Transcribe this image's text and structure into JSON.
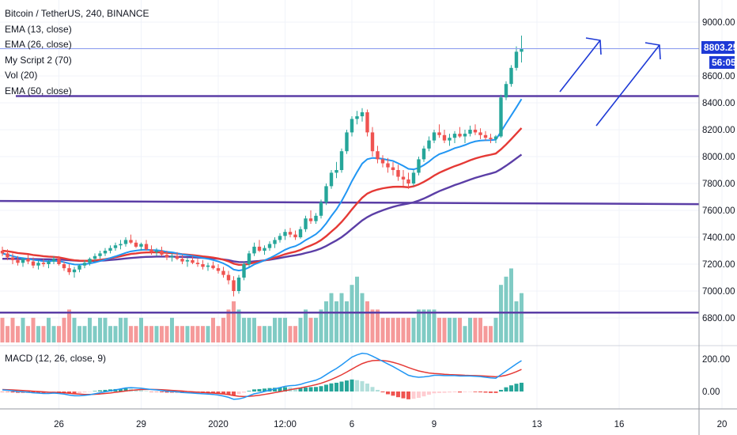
{
  "legend": {
    "title": "Bitcoin / TetherUS, 240, BINANCE",
    "ema13": "EMA (13, close)",
    "ema26": "EMA (26, close)",
    "script": "My Script 2  (70)",
    "vol": "Vol (20)",
    "ema50": "EMA (50, close)"
  },
  "macd_legend": "MACD (12, 26, close, 9)",
  "price_badge": "8803.25",
  "countdown_badge": "56:05",
  "colors": {
    "up": "#26a69a",
    "down": "#ef5350",
    "vol_up": "#80cbc4",
    "vol_down": "#f59a9a",
    "ema13": "#2196f3",
    "ema26": "#e53935",
    "ema50": "#5b3ea6",
    "hline": "#5b3ea6",
    "arrow": "#1e3ad6",
    "price_line": "#8c9cf0",
    "badge_price": "#1e3ad6",
    "badge_timer": "#1e3ad6"
  },
  "chart_data": {
    "type": "candlestick",
    "price_axis": {
      "ticks": [
        "9000.00",
        "8800.00",
        "8600.00",
        "8400.00",
        "8200.00",
        "8000.00",
        "7800.00",
        "7600.00",
        "7400.00",
        "7200.00",
        "7000.00",
        "6800.00"
      ],
      "values": [
        9000,
        8800,
        8600,
        8400,
        8200,
        8000,
        7800,
        7600,
        7400,
        7200,
        7000,
        6800
      ],
      "range": [
        6680,
        9080
      ]
    },
    "macd_axis": {
      "ticks": [
        "200.00",
        "0.00"
      ],
      "values": [
        200,
        0
      ],
      "range": [
        -110,
        260
      ]
    },
    "time_axis": {
      "labels": [
        "26",
        "29",
        "2020",
        "12:00",
        "6",
        "9",
        "13",
        "16",
        "20"
      ],
      "bar_index": [
        11,
        27,
        42,
        55,
        68,
        84,
        104,
        120,
        140
      ]
    },
    "horizontal_lines": [
      8450,
      7670,
      6840
    ],
    "last_price": 8803.25,
    "candles": [
      [
        7300,
        7330,
        7260,
        7280
      ],
      [
        7280,
        7310,
        7230,
        7250
      ],
      [
        7250,
        7280,
        7200,
        7230
      ],
      [
        7230,
        7260,
        7190,
        7210
      ],
      [
        7210,
        7250,
        7180,
        7240
      ],
      [
        7240,
        7270,
        7200,
        7220
      ],
      [
        7220,
        7250,
        7170,
        7190
      ],
      [
        7190,
        7230,
        7160,
        7210
      ],
      [
        7210,
        7240,
        7180,
        7200
      ],
      [
        7200,
        7230,
        7170,
        7220
      ],
      [
        7220,
        7260,
        7200,
        7240
      ],
      [
        7240,
        7260,
        7190,
        7200
      ],
      [
        7200,
        7220,
        7150,
        7170
      ],
      [
        7170,
        7200,
        7120,
        7140
      ],
      [
        7140,
        7180,
        7100,
        7160
      ],
      [
        7160,
        7200,
        7140,
        7190
      ],
      [
        7190,
        7230,
        7170,
        7210
      ],
      [
        7210,
        7250,
        7190,
        7240
      ],
      [
        7240,
        7280,
        7220,
        7260
      ],
      [
        7260,
        7300,
        7240,
        7280
      ],
      [
        7280,
        7320,
        7260,
        7300
      ],
      [
        7300,
        7340,
        7280,
        7320
      ],
      [
        7320,
        7360,
        7300,
        7340
      ],
      [
        7340,
        7380,
        7310,
        7350
      ],
      [
        7350,
        7400,
        7330,
        7380
      ],
      [
        7380,
        7420,
        7350,
        7360
      ],
      [
        7360,
        7380,
        7320,
        7330
      ],
      [
        7330,
        7360,
        7300,
        7350
      ],
      [
        7350,
        7380,
        7300,
        7310
      ],
      [
        7310,
        7340,
        7270,
        7290
      ],
      [
        7290,
        7320,
        7260,
        7300
      ],
      [
        7300,
        7330,
        7260,
        7270
      ],
      [
        7270,
        7300,
        7230,
        7250
      ],
      [
        7250,
        7280,
        7220,
        7260
      ],
      [
        7260,
        7290,
        7230,
        7240
      ],
      [
        7240,
        7270,
        7200,
        7220
      ],
      [
        7220,
        7250,
        7180,
        7230
      ],
      [
        7230,
        7260,
        7200,
        7210
      ],
      [
        7210,
        7240,
        7180,
        7200
      ],
      [
        7200,
        7230,
        7160,
        7180
      ],
      [
        7180,
        7210,
        7150,
        7190
      ],
      [
        7190,
        7220,
        7160,
        7170
      ],
      [
        7170,
        7200,
        7130,
        7150
      ],
      [
        7150,
        7180,
        7100,
        7120
      ],
      [
        7120,
        7150,
        7050,
        7080
      ],
      [
        7080,
        7110,
        6960,
        7000
      ],
      [
        7000,
        7120,
        6980,
        7100
      ],
      [
        7100,
        7220,
        7080,
        7200
      ],
      [
        7200,
        7300,
        7180,
        7280
      ],
      [
        7280,
        7360,
        7260,
        7330
      ],
      [
        7330,
        7380,
        7290,
        7300
      ],
      [
        7300,
        7340,
        7270,
        7320
      ],
      [
        7320,
        7370,
        7300,
        7350
      ],
      [
        7350,
        7400,
        7320,
        7380
      ],
      [
        7380,
        7430,
        7360,
        7410
      ],
      [
        7410,
        7460,
        7380,
        7440
      ],
      [
        7440,
        7470,
        7400,
        7420
      ],
      [
        7420,
        7450,
        7380,
        7400
      ],
      [
        7400,
        7480,
        7390,
        7460
      ],
      [
        7460,
        7560,
        7440,
        7540
      ],
      [
        7540,
        7600,
        7500,
        7520
      ],
      [
        7520,
        7580,
        7500,
        7560
      ],
      [
        7560,
        7680,
        7540,
        7660
      ],
      [
        7660,
        7800,
        7640,
        7780
      ],
      [
        7780,
        7900,
        7760,
        7880
      ],
      [
        7880,
        7960,
        7840,
        7900
      ],
      [
        7900,
        8060,
        7880,
        8040
      ],
      [
        8040,
        8200,
        8020,
        8180
      ],
      [
        8180,
        8300,
        8150,
        8280
      ],
      [
        8280,
        8340,
        8240,
        8300
      ],
      [
        8300,
        8360,
        8260,
        8330
      ],
      [
        8330,
        8350,
        8150,
        8180
      ],
      [
        8180,
        8220,
        8000,
        8040
      ],
      [
        8040,
        8080,
        7950,
        7980
      ],
      [
        7980,
        8010,
        7920,
        7950
      ],
      [
        7950,
        7990,
        7880,
        7920
      ],
      [
        7920,
        7960,
        7860,
        7900
      ],
      [
        7900,
        7940,
        7820,
        7850
      ],
      [
        7850,
        7900,
        7780,
        7830
      ],
      [
        7830,
        7880,
        7760,
        7800
      ],
      [
        7800,
        7900,
        7780,
        7880
      ],
      [
        7880,
        8000,
        7860,
        7980
      ],
      [
        7980,
        8080,
        7960,
        8060
      ],
      [
        8060,
        8150,
        8040,
        8120
      ],
      [
        8120,
        8200,
        8100,
        8180
      ],
      [
        8180,
        8240,
        8140,
        8160
      ],
      [
        8160,
        8200,
        8100,
        8120
      ],
      [
        8120,
        8170,
        8080,
        8140
      ],
      [
        8140,
        8190,
        8100,
        8170
      ],
      [
        8170,
        8220,
        8140,
        8150
      ],
      [
        8150,
        8200,
        8100,
        8170
      ],
      [
        8170,
        8230,
        8150,
        8200
      ],
      [
        8200,
        8240,
        8160,
        8180
      ],
      [
        8180,
        8210,
        8130,
        8160
      ],
      [
        8160,
        8190,
        8120,
        8140
      ],
      [
        8140,
        8170,
        8100,
        8130
      ],
      [
        8130,
        8160,
        8100,
        8150
      ],
      [
        8150,
        8460,
        8140,
        8440
      ],
      [
        8440,
        8560,
        8420,
        8540
      ],
      [
        8540,
        8680,
        8520,
        8660
      ],
      [
        8660,
        8820,
        8640,
        8780
      ],
      [
        8780,
        8900,
        8700,
        8803.25
      ]
    ],
    "volume_upper": 10,
    "volumes": [
      3,
      2,
      3,
      2,
      3,
      2,
      3,
      2,
      2,
      3,
      2,
      2,
      3,
      4,
      3,
      2,
      2,
      3,
      2,
      3,
      3,
      2,
      2,
      3,
      3,
      2,
      2,
      3,
      2,
      2,
      2,
      2,
      2,
      3,
      2,
      2,
      2,
      2,
      2,
      2,
      2,
      3,
      2,
      3,
      4,
      5,
      4,
      3,
      3,
      3,
      2,
      2,
      2,
      3,
      3,
      3,
      2,
      2,
      3,
      4,
      3,
      3,
      4,
      5,
      6,
      5,
      6,
      5,
      7,
      8,
      6,
      5,
      4,
      4,
      3,
      3,
      3,
      3,
      3,
      3,
      3,
      4,
      4,
      4,
      4,
      3,
      3,
      3,
      3,
      3,
      2,
      3,
      3,
      3,
      2,
      2,
      3,
      7,
      8,
      9,
      5,
      6
    ],
    "ema13": [
      7280,
      7270,
      7260,
      7250,
      7245,
      7240,
      7232,
      7228,
      7222,
      7222,
      7225,
      7222,
      7215,
      7205,
      7198,
      7197,
      7200,
      7205,
      7213,
      7223,
      7234,
      7246,
      7258,
      7271,
      7284,
      7295,
      7301,
      7306,
      7307,
      7305,
      7304,
      7299,
      7292,
      7288,
      7281,
      7273,
      7268,
      7261,
      7254,
      7246,
      7240,
      7231,
      7220,
      7206,
      7186,
      7160,
      7152,
      7159,
      7176,
      7198,
      7213,
      7228,
      7245,
      7264,
      7285,
      7307,
      7323,
      7334,
      7353,
      7379,
      7400,
      7423,
      7457,
      7503,
      7558,
      7608,
      7669,
      7740,
      7817,
      7885,
      7948,
      7981,
      7990,
      7988,
      7983,
      7975,
      7968,
      7950,
      7931,
      7909,
      7905,
      7916,
      7937,
      7963,
      7994,
      8018,
      8031,
      8046,
      8063,
      8073,
      8086,
      8102,
      8113,
      8119,
      8121,
      8122,
      8126,
      8185,
      8247,
      8306,
      8366,
      8428
    ],
    "ema26": [
      7300,
      7296,
      7290,
      7283,
      7279,
      7275,
      7268,
      7264,
      7259,
      7256,
      7254,
      7250,
      7243,
      7235,
      7229,
      7226,
      7225,
      7225,
      7228,
      7232,
      7237,
      7244,
      7251,
      7259,
      7268,
      7276,
      7280,
      7285,
      7287,
      7288,
      7289,
      7287,
      7284,
      7282,
      7279,
      7274,
      7271,
      7267,
      7263,
      7258,
      7254,
      7249,
      7242,
      7233,
      7221,
      7204,
      7195,
      7196,
      7202,
      7212,
      7219,
      7228,
      7238,
      7249,
      7261,
      7274,
      7284,
      7293,
      7306,
      7324,
      7339,
      7356,
      7379,
      7408,
      7442,
      7475,
      7514,
      7559,
      7607,
      7652,
      7694,
      7725,
      7743,
      7755,
      7764,
      7770,
      7775,
      7776,
      7775,
      7772,
      7779,
      7793,
      7812,
      7834,
      7859,
      7880,
      7897,
      7913,
      7929,
      7942,
      7957,
      7973,
      7986,
      7997,
      8006,
      8014,
      8023,
      8054,
      8090,
      8130,
      8171,
      8212
    ],
    "ema50": [
      7240,
      7240,
      7240,
      7239,
      7239,
      7239,
      7238,
      7237,
      7236,
      7236,
      7235,
      7234,
      7232,
      7229,
      7227,
      7225,
      7224,
      7224,
      7225,
      7226,
      7228,
      7231,
      7234,
      7238,
      7242,
      7246,
      7249,
      7252,
      7254,
      7255,
      7256,
      7256,
      7256,
      7256,
      7255,
      7254,
      7253,
      7251,
      7249,
      7247,
      7245,
      7243,
      7240,
      7235,
      7230,
      7221,
      7216,
      7215,
      7217,
      7221,
      7224,
      7228,
      7233,
      7239,
      7246,
      7253,
      7260,
      7266,
      7273,
      7283,
      7292,
      7303,
      7317,
      7335,
      7356,
      7377,
      7401,
      7430,
      7462,
      7494,
      7525,
      7550,
      7570,
      7586,
      7601,
      7614,
      7626,
      7636,
      7644,
      7651,
      7660,
      7673,
      7688,
      7706,
      7725,
      7743,
      7758,
      7773,
      7788,
      7801,
      7815,
      7829,
      7842,
      7853,
      7864,
      7874,
      7885,
      7907,
      7932,
      7959,
      7987,
      8015
    ],
    "macd": [
      10,
      8,
      4,
      0,
      -2,
      -4,
      -8,
      -10,
      -12,
      -12,
      -10,
      -12,
      -16,
      -22,
      -26,
      -26,
      -24,
      -20,
      -14,
      -8,
      -2,
      4,
      10,
      16,
      22,
      24,
      22,
      20,
      16,
      12,
      10,
      6,
      2,
      0,
      -2,
      -6,
      -8,
      -10,
      -12,
      -14,
      -16,
      -18,
      -22,
      -28,
      -36,
      -48,
      -46,
      -38,
      -26,
      -14,
      -8,
      0,
      8,
      16,
      24,
      32,
      36,
      38,
      44,
      54,
      62,
      70,
      84,
      104,
      124,
      142,
      164,
      188,
      212,
      226,
      236,
      232,
      218,
      202,
      186,
      170,
      154,
      136,
      118,
      100,
      92,
      88,
      90,
      94,
      100,
      100,
      98,
      98,
      98,
      96,
      96,
      96,
      94,
      92,
      88,
      84,
      82,
      104,
      126,
      148,
      170,
      190
    ],
    "signal": [
      12,
      11,
      10,
      8,
      6,
      4,
      2,
      0,
      -2,
      -4,
      -5,
      -6,
      -8,
      -11,
      -14,
      -16,
      -18,
      -18,
      -17,
      -15,
      -12,
      -9,
      -5,
      -1,
      3,
      7,
      10,
      12,
      13,
      13,
      12,
      11,
      9,
      7,
      5,
      3,
      0,
      -2,
      -4,
      -6,
      -8,
      -10,
      -12,
      -15,
      -19,
      -25,
      -29,
      -31,
      -30,
      -27,
      -23,
      -18,
      -13,
      -7,
      -1,
      5,
      11,
      17,
      22,
      29,
      35,
      42,
      51,
      62,
      74,
      88,
      103,
      120,
      138,
      156,
      172,
      183,
      190,
      192,
      191,
      187,
      180,
      171,
      160,
      148,
      137,
      127,
      120,
      114,
      111,
      109,
      106,
      104,
      103,
      102,
      100,
      99,
      98,
      97,
      95,
      93,
      91,
      94,
      100,
      110,
      122,
      136
    ]
  }
}
